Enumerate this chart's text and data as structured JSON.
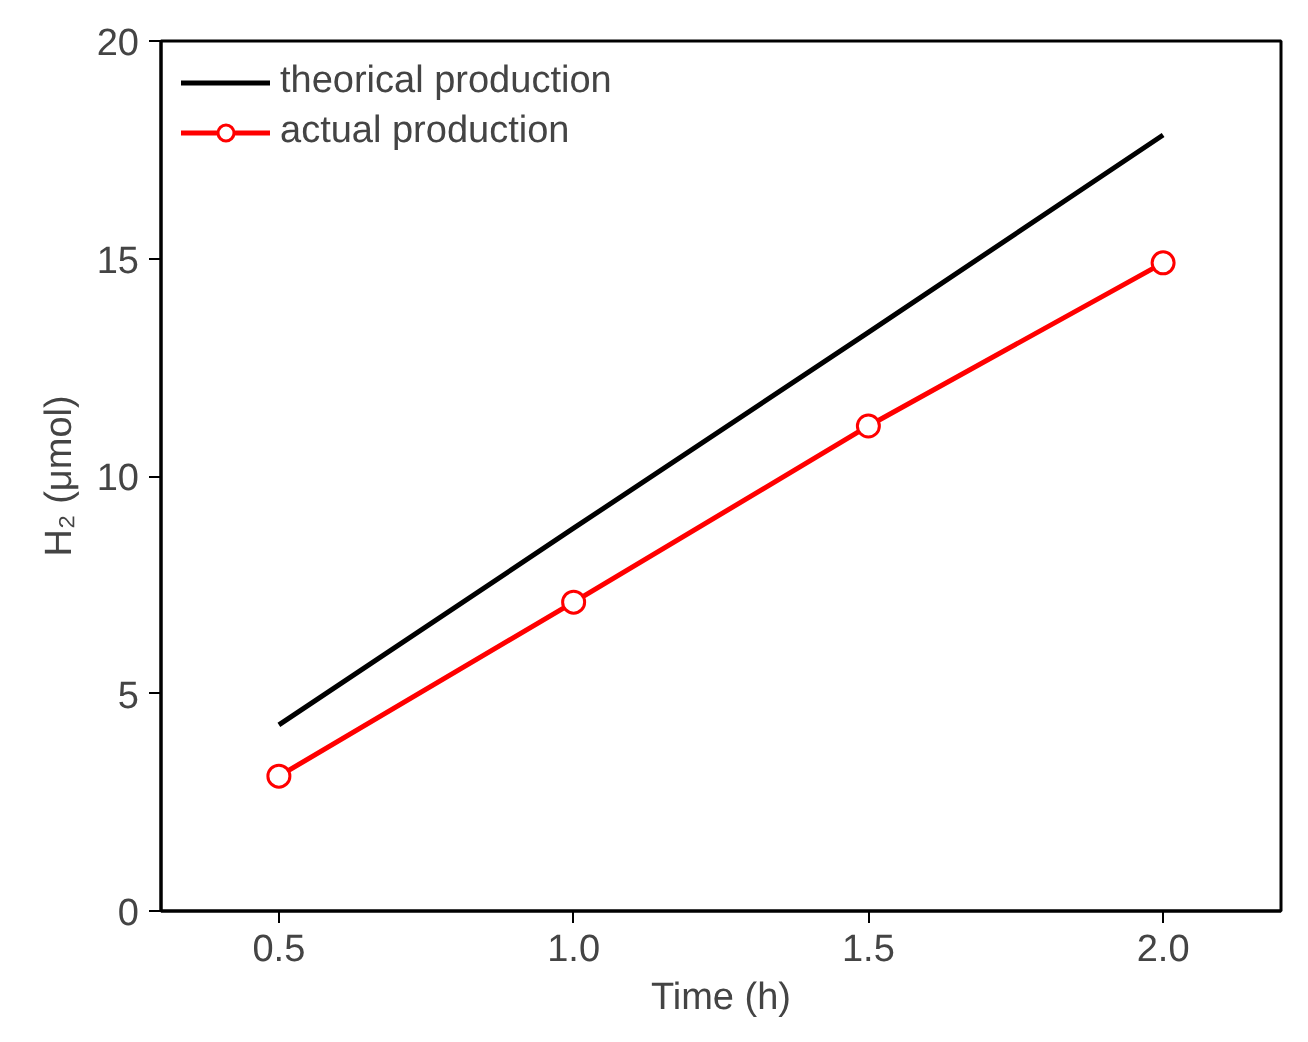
{
  "chart_data": {
    "type": "line",
    "xlabel": "Time (h)",
    "ylabel": "H₂ (μmol)",
    "x": [
      0.5,
      1.0,
      1.5,
      2.0
    ],
    "series": [
      {
        "name": "theorical production",
        "color": "#000000",
        "values": [
          4.28,
          8.8,
          13.3,
          17.84
        ],
        "marker": "none"
      },
      {
        "name": "actual production",
        "color": "#ff0000",
        "values": [
          3.1,
          7.1,
          11.15,
          14.9
        ],
        "marker": "circle"
      }
    ],
    "xlim": [
      0.3,
      2.2
    ],
    "xticks": [
      {
        "value": 0.5,
        "label": "0.5"
      },
      {
        "value": 1.0,
        "label": "1.0"
      },
      {
        "value": 1.5,
        "label": "1.5"
      },
      {
        "value": 2.0,
        "label": "2.0"
      }
    ],
    "ylim": [
      0,
      20
    ],
    "yticks": [
      0,
      5,
      10,
      15,
      20
    ],
    "grid": false,
    "legend": "top left",
    "line_style": "solid"
  }
}
